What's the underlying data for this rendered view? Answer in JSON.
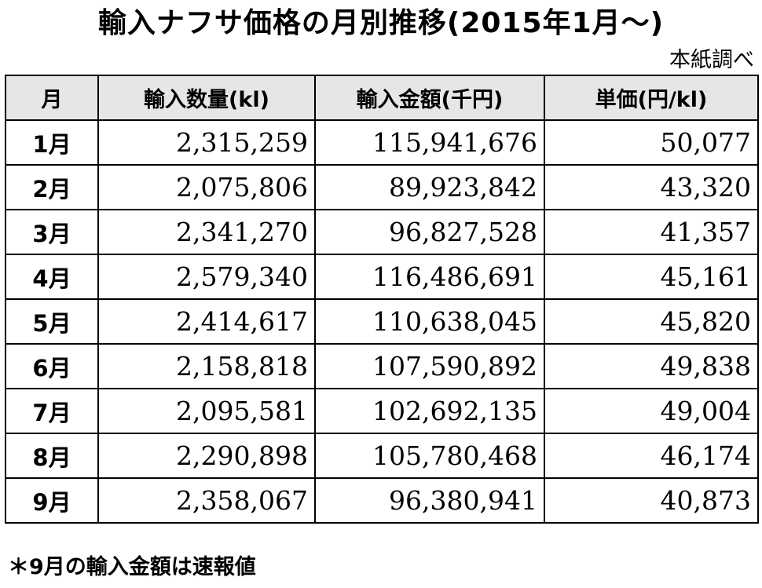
{
  "title": "輸入ナフサ価格の月別推移(2015年1月～)",
  "source": "本紙調べ",
  "table": {
    "headers": [
      "月",
      "輸入数量(kl)",
      "輸入金額(千円)",
      "単価(円/kl)"
    ],
    "rows": [
      [
        "1月",
        "2,315,259",
        "115,941,676",
        "50,077"
      ],
      [
        "2月",
        "2,075,806",
        "89,923,842",
        "43,320"
      ],
      [
        "3月",
        "2,341,270",
        "96,827,528",
        "41,357"
      ],
      [
        "4月",
        "2,579,340",
        "116,486,691",
        "45,161"
      ],
      [
        "5月",
        "2,414,617",
        "110,638,045",
        "45,820"
      ],
      [
        "6月",
        "2,158,818",
        "107,590,892",
        "49,838"
      ],
      [
        "7月",
        "2,095,581",
        "102,692,135",
        "49,004"
      ],
      [
        "8月",
        "2,290,898",
        "105,780,468",
        "46,174"
      ],
      [
        "9月",
        "2,358,067",
        "96,380,941",
        "40,873"
      ]
    ]
  },
  "footnote": "＊9月の輸入金額は速報値",
  "colors": {
    "header_background": "#e6e6e6",
    "border": "#000000",
    "text": "#000000",
    "page_background": "#ffffff"
  }
}
